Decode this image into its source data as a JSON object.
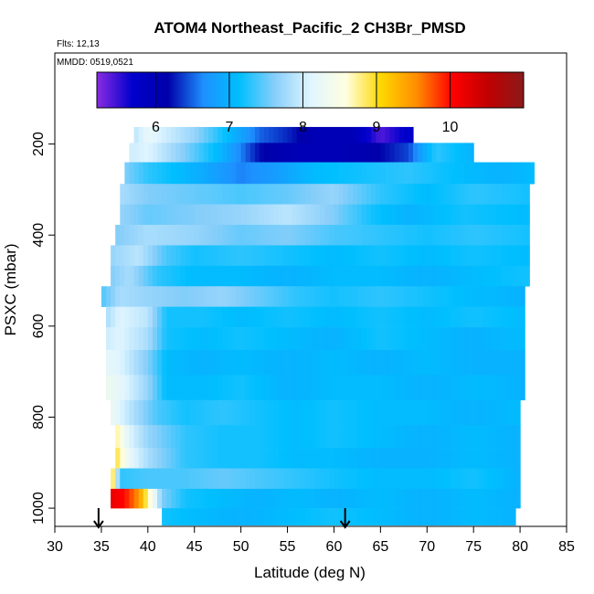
{
  "chart_data": {
    "type": "heatmap",
    "title": "ATOM4 Northeast_Pacific_2 CH3Br_PMSD",
    "subtitle_flights": "Flts: 12,13",
    "subtitle_dates": "MMDD: 0519,0521",
    "xlabel": "Latitude (deg N)",
    "ylabel": "PSXC (mbar)",
    "xlim": [
      30,
      85
    ],
    "ylim": [
      1000,
      0
    ],
    "x_ticks": [
      "30",
      "35",
      "40",
      "45",
      "50",
      "55",
      "60",
      "65",
      "70",
      "75",
      "80",
      "85"
    ],
    "y_ticks": [
      "200",
      "400",
      "600",
      "800",
      "1000"
    ],
    "colorbar": {
      "range": [
        5.2,
        8.0,
        11.0
      ],
      "tick_labels": [
        "6",
        "7",
        "8",
        "9",
        "10"
      ],
      "tick_values": [
        6,
        7,
        8,
        9,
        10
      ],
      "colors": [
        "#8a2be2",
        "#0000cd",
        "#0000aa",
        "#1e90ff",
        "#00bfff",
        "#87cefa",
        "#e0f5ff",
        "#ffffe0",
        "#ffd700",
        "#ff8c00",
        "#ff0000",
        "#c00000",
        "#8b1a1a"
      ]
    },
    "flight_marker_latitudes": [
      34.7,
      61.2
    ],
    "rows": [
      {
        "p": 180,
        "lat_min": 38.5,
        "lat_max": 68.5,
        "values": [
          [
            38.5,
            7.9
          ],
          [
            40,
            8.2
          ],
          [
            42,
            8.0
          ],
          [
            45,
            7.7
          ],
          [
            48,
            7.2
          ],
          [
            52,
            6.5
          ],
          [
            55,
            6.3
          ],
          [
            58,
            6.0
          ],
          [
            62,
            6.0
          ],
          [
            65,
            5.4
          ],
          [
            68.5,
            5.8
          ]
        ]
      },
      {
        "p": 215,
        "lat_min": 38.0,
        "lat_max": 75.0,
        "values": [
          [
            38,
            8.0
          ],
          [
            40,
            8.1
          ],
          [
            44,
            7.6
          ],
          [
            48,
            7.0
          ],
          [
            52,
            6.2
          ],
          [
            56,
            6.0
          ],
          [
            60,
            6.0
          ],
          [
            64,
            6.1
          ],
          [
            68,
            6.4
          ],
          [
            71,
            7.3
          ],
          [
            75,
            7.0
          ]
        ]
      },
      {
        "p": 265,
        "lat_min": 37.5,
        "lat_max": 81.5,
        "values": [
          [
            37.5,
            7.6
          ],
          [
            40,
            7.3
          ],
          [
            45,
            7.0
          ],
          [
            50,
            6.6
          ],
          [
            54,
            6.8
          ],
          [
            58,
            7.1
          ],
          [
            63,
            7.2
          ],
          [
            68,
            7.3
          ],
          [
            74,
            7.1
          ],
          [
            78,
            7.0
          ],
          [
            81.5,
            7.1
          ]
        ]
      },
      {
        "p": 310,
        "lat_min": 37.0,
        "lat_max": 81.0,
        "values": [
          [
            37,
            7.8
          ],
          [
            40,
            7.6
          ],
          [
            45,
            7.5
          ],
          [
            50,
            7.4
          ],
          [
            55,
            7.5
          ],
          [
            60,
            7.7
          ],
          [
            65,
            7.3
          ],
          [
            70,
            7.1
          ],
          [
            75,
            7.3
          ],
          [
            81,
            7.2
          ]
        ]
      },
      {
        "p": 355,
        "lat_min": 37.0,
        "lat_max": 81.0,
        "values": [
          [
            37,
            7.7
          ],
          [
            40,
            7.5
          ],
          [
            45,
            7.6
          ],
          [
            50,
            7.7
          ],
          [
            55,
            7.9
          ],
          [
            60,
            7.6
          ],
          [
            64,
            7.2
          ],
          [
            68,
            7.0
          ],
          [
            74,
            7.2
          ],
          [
            81,
            7.1
          ]
        ]
      },
      {
        "p": 400,
        "lat_min": 36.5,
        "lat_max": 81.0,
        "values": [
          [
            36.5,
            7.6
          ],
          [
            40,
            7.8
          ],
          [
            45,
            7.7
          ],
          [
            50,
            7.5
          ],
          [
            55,
            7.6
          ],
          [
            60,
            7.4
          ],
          [
            65,
            7.3
          ],
          [
            70,
            7.2
          ],
          [
            75,
            7.3
          ],
          [
            81,
            7.2
          ]
        ]
      },
      {
        "p": 445,
        "lat_min": 36.0,
        "lat_max": 81.0,
        "values": [
          [
            36,
            7.7
          ],
          [
            39,
            7.9
          ],
          [
            42,
            7.4
          ],
          [
            45,
            7.2
          ],
          [
            50,
            7.3
          ],
          [
            55,
            7.2
          ],
          [
            60,
            7.1
          ],
          [
            65,
            7.2
          ],
          [
            70,
            7.1
          ],
          [
            75,
            7.2
          ],
          [
            81,
            7.1
          ]
        ]
      },
      {
        "p": 490,
        "lat_min": 36.0,
        "lat_max": 81.0,
        "values": [
          [
            36,
            7.6
          ],
          [
            38,
            7.8
          ],
          [
            41,
            7.3
          ],
          [
            45,
            7.1
          ],
          [
            50,
            7.1
          ],
          [
            55,
            7.0
          ],
          [
            60,
            7.1
          ],
          [
            65,
            7.1
          ],
          [
            70,
            7.0
          ],
          [
            75,
            7.1
          ],
          [
            81,
            7.2
          ]
        ]
      },
      {
        "p": 535,
        "lat_min": 35.0,
        "lat_max": 80.5,
        "values": [
          [
            35,
            7.4
          ],
          [
            37,
            7.8
          ],
          [
            40,
            7.7
          ],
          [
            44,
            7.6
          ],
          [
            48,
            7.7
          ],
          [
            52,
            7.5
          ],
          [
            56,
            7.3
          ],
          [
            60,
            7.2
          ],
          [
            65,
            7.3
          ],
          [
            70,
            7.2
          ],
          [
            75,
            7.1
          ],
          [
            80.5,
            7.0
          ]
        ]
      },
      {
        "p": 580,
        "lat_min": 35.5,
        "lat_max": 80.5,
        "values": [
          [
            35.5,
            7.8
          ],
          [
            37,
            8.1
          ],
          [
            40,
            7.9
          ],
          [
            42,
            7.2
          ],
          [
            46,
            7.2
          ],
          [
            50,
            7.1
          ],
          [
            55,
            7.2
          ],
          [
            60,
            7.1
          ],
          [
            65,
            7.2
          ],
          [
            70,
            7.1
          ],
          [
            75,
            7.2
          ],
          [
            80.5,
            7.1
          ]
        ]
      },
      {
        "p": 625,
        "lat_min": 35.5,
        "lat_max": 80.5,
        "values": [
          [
            35.5,
            8.0
          ],
          [
            37,
            8.1
          ],
          [
            40,
            7.8
          ],
          [
            42,
            7.2
          ],
          [
            46,
            7.1
          ],
          [
            50,
            7.2
          ],
          [
            55,
            7.1
          ],
          [
            60,
            7.0
          ],
          [
            65,
            7.2
          ],
          [
            70,
            7.1
          ],
          [
            75,
            7.0
          ],
          [
            80.5,
            7.1
          ]
        ]
      },
      {
        "p": 680,
        "lat_min": 35.5,
        "lat_max": 80.5,
        "values": [
          [
            35.5,
            8.2
          ],
          [
            37,
            8.1
          ],
          [
            40,
            7.6
          ],
          [
            42,
            7.1
          ],
          [
            46,
            7.0
          ],
          [
            50,
            7.1
          ],
          [
            55,
            7.0
          ],
          [
            60,
            7.1
          ],
          [
            65,
            7.0
          ],
          [
            70,
            7.1
          ],
          [
            75,
            7.0
          ],
          [
            80.5,
            7.0
          ]
        ]
      },
      {
        "p": 735,
        "lat_min": 35.5,
        "lat_max": 80.5,
        "values": [
          [
            35.5,
            8.3
          ],
          [
            37,
            8.2
          ],
          [
            40,
            7.7
          ],
          [
            42,
            7.1
          ],
          [
            46,
            7.1
          ],
          [
            50,
            7.2
          ],
          [
            55,
            7.0
          ],
          [
            60,
            7.1
          ],
          [
            65,
            7.1
          ],
          [
            70,
            7.0
          ],
          [
            75,
            7.1
          ],
          [
            80.5,
            7.0
          ]
        ]
      },
      {
        "p": 790,
        "lat_min": 36.0,
        "lat_max": 80.0,
        "values": [
          [
            36,
            8.3
          ],
          [
            38,
            7.9
          ],
          [
            41,
            7.4
          ],
          [
            44,
            7.2
          ],
          [
            48,
            7.3
          ],
          [
            52,
            7.2
          ],
          [
            56,
            7.1
          ],
          [
            60,
            7.2
          ],
          [
            65,
            7.1
          ],
          [
            70,
            7.1
          ],
          [
            75,
            7.0
          ],
          [
            80,
            7.1
          ]
        ]
      },
      {
        "p": 845,
        "lat_min": 36.5,
        "lat_max": 80.0,
        "values": [
          [
            36.5,
            8.8
          ],
          [
            38,
            8.1
          ],
          [
            40,
            7.7
          ],
          [
            44,
            7.3
          ],
          [
            48,
            7.2
          ],
          [
            52,
            7.2
          ],
          [
            56,
            7.1
          ],
          [
            60,
            7.2
          ],
          [
            65,
            7.1
          ],
          [
            70,
            7.0
          ],
          [
            75,
            7.1
          ],
          [
            80,
            7.0
          ]
        ]
      },
      {
        "p": 890,
        "lat_min": 36.5,
        "lat_max": 80.0,
        "values": [
          [
            36.5,
            9.0
          ],
          [
            38,
            8.2
          ],
          [
            40,
            7.8
          ],
          [
            44,
            7.3
          ],
          [
            48,
            7.2
          ],
          [
            52,
            7.2
          ],
          [
            56,
            7.1
          ],
          [
            60,
            7.1
          ],
          [
            65,
            7.0
          ],
          [
            70,
            7.0
          ],
          [
            75,
            7.1
          ],
          [
            80,
            7.0
          ]
        ]
      },
      {
        "p": 935,
        "lat_min": 36.0,
        "lat_max": 80.0,
        "values": [
          [
            36,
            9.3
          ],
          [
            37,
            7.3
          ],
          [
            40,
            7.4
          ],
          [
            44,
            7.4
          ],
          [
            48,
            7.5
          ],
          [
            52,
            7.4
          ],
          [
            56,
            7.3
          ],
          [
            60,
            7.2
          ],
          [
            65,
            7.1
          ],
          [
            70,
            7.1
          ],
          [
            75,
            7.2
          ],
          [
            80,
            7.0
          ]
        ]
      },
      {
        "p": 980,
        "lat_min": 36.0,
        "lat_max": 80.0,
        "values": [
          [
            36,
            10.2
          ],
          [
            37.5,
            10.0
          ],
          [
            39,
            9.5
          ],
          [
            40.5,
            8.4
          ],
          [
            41.5,
            7.6
          ],
          [
            44,
            7.2
          ],
          [
            48,
            7.1
          ],
          [
            52,
            7.0
          ],
          [
            56,
            7.1
          ],
          [
            60,
            7.0
          ],
          [
            65,
            7.1
          ],
          [
            70,
            7.0
          ],
          [
            75,
            7.1
          ],
          [
            80,
            7.0
          ]
        ]
      },
      {
        "p": 1020,
        "lat_min": 41.5,
        "lat_max": 79.5,
        "values": [
          [
            41.5,
            7.2
          ],
          [
            45,
            7.1
          ],
          [
            50,
            7.0
          ],
          [
            55,
            7.1
          ],
          [
            60,
            7.2
          ],
          [
            65,
            7.1
          ],
          [
            70,
            7.0
          ],
          [
            75,
            7.1
          ],
          [
            79.5,
            7.0
          ]
        ]
      }
    ]
  }
}
